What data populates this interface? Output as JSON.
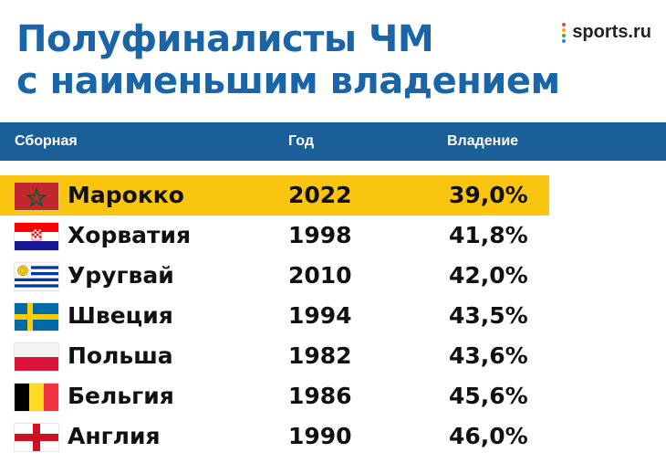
{
  "title": {
    "line1": "Полуфиналисты ЧМ",
    "line2": "с наименьшим владением"
  },
  "logo": {
    "text": "sports.ru"
  },
  "table": {
    "headers": {
      "team": "Сборная",
      "year": "Год",
      "possession": "Владение"
    },
    "rows": [
      {
        "team": "Марокко",
        "year": "2022",
        "possession": "39,0%",
        "flag": "morocco-flag-icon",
        "highlighted": true
      },
      {
        "team": "Хорватия",
        "year": "1998",
        "possession": "41,8%",
        "flag": "croatia-flag-icon",
        "highlighted": false
      },
      {
        "team": "Уругвай",
        "year": "2010",
        "possession": "42,0%",
        "flag": "uruguay-flag-icon",
        "highlighted": false
      },
      {
        "team": "Швеция",
        "year": "1994",
        "possession": "43,5%",
        "flag": "sweden-flag-icon",
        "highlighted": false
      },
      {
        "team": "Польша",
        "year": "1982",
        "possession": "43,6%",
        "flag": "poland-flag-icon",
        "highlighted": false
      },
      {
        "team": "Бельгия",
        "year": "1986",
        "possession": "45,6%",
        "flag": "belgium-flag-icon",
        "highlighted": false
      },
      {
        "team": "Англия",
        "year": "1990",
        "possession": "46,0%",
        "flag": "england-flag-icon",
        "highlighted": false
      }
    ]
  },
  "colors": {
    "title": "#1a65a8",
    "header_bg": "#1b5f99",
    "highlight": "#fac510"
  }
}
